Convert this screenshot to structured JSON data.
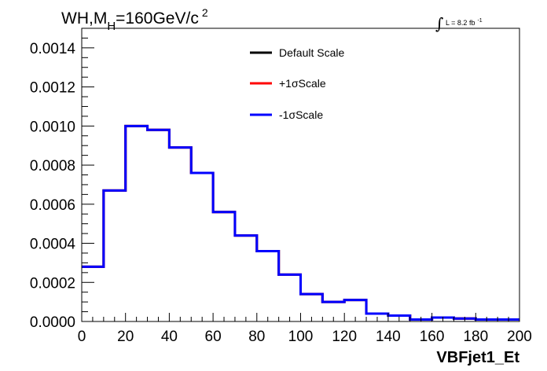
{
  "chart_data": {
    "type": "line",
    "style": "step-histogram",
    "title": "WH,M_H=160GeV/c^2",
    "title_parts": {
      "main": "WH,M",
      "subscript": "H",
      "value": "=160GeV/c",
      "superscript": "2"
    },
    "luminosity_label": {
      "integral": "∫",
      "text": "L = 8.2 fb",
      "superscript": "-1"
    },
    "xlabel": "VBFjet1_Et",
    "ylabel": "",
    "xlim": [
      0,
      200
    ],
    "ylim": [
      0,
      0.0015
    ],
    "x_ticks": [
      "0",
      "20",
      "40",
      "60",
      "80",
      "100",
      "120",
      "140",
      "160",
      "180",
      "200"
    ],
    "y_ticks": [
      "0.0000",
      "0.0002",
      "0.0004",
      "0.0006",
      "0.0008",
      "0.0010",
      "0.0012",
      "0.0014"
    ],
    "bin_edges": [
      0,
      10,
      20,
      30,
      40,
      50,
      60,
      70,
      80,
      90,
      100,
      110,
      120,
      130,
      140,
      150,
      160,
      170,
      180,
      190,
      200
    ],
    "grid": false,
    "legend_position": "top-center",
    "series": [
      {
        "name": "Default Scale",
        "color": "#000000",
        "values": [
          0.00028,
          0.00067,
          0.001,
          0.00098,
          0.00089,
          0.00076,
          0.00056,
          0.00044,
          0.00036,
          0.00024,
          0.00014,
          0.0001,
          0.00011,
          4e-05,
          3e-05,
          1e-05,
          2e-05,
          1.5e-05,
          1e-05,
          1e-05
        ]
      },
      {
        "name": "+1σScale",
        "color": "#ff0000",
        "values": [
          0.00028,
          0.00067,
          0.001,
          0.00098,
          0.00089,
          0.00076,
          0.00056,
          0.00044,
          0.00036,
          0.00024,
          0.00014,
          0.0001,
          0.00011,
          4e-05,
          3e-05,
          1e-05,
          2e-05,
          1.5e-05,
          1e-05,
          1e-05
        ]
      },
      {
        "name": "-1σScale",
        "color": "#0000ff",
        "values": [
          0.00028,
          0.00067,
          0.001,
          0.00098,
          0.00089,
          0.00076,
          0.00056,
          0.00044,
          0.00036,
          0.00024,
          0.00014,
          0.0001,
          0.00011,
          4e-05,
          3e-05,
          1e-05,
          2e-05,
          1.5e-05,
          1e-05,
          1e-05
        ]
      }
    ]
  }
}
